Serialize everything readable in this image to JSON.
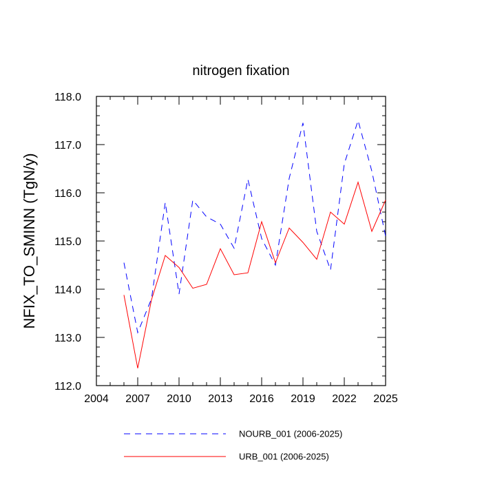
{
  "chart_data": {
    "type": "line",
    "title": "nitrogen fixation",
    "xlabel": "",
    "ylabel": "NFIX_TO_SMINN  (TgN/y)",
    "xlim": [
      2004,
      2025
    ],
    "ylim": [
      112.0,
      118.0
    ],
    "xticks": [
      2004,
      2007,
      2010,
      2013,
      2016,
      2019,
      2022,
      2025
    ],
    "xtick_labels": [
      "2004",
      "2007",
      "2010",
      "2013",
      "2016",
      "2019",
      "2022",
      "2025"
    ],
    "yticks": [
      112.0,
      113.0,
      114.0,
      115.0,
      116.0,
      117.0,
      118.0
    ],
    "ytick_labels": [
      "112.0",
      "113.0",
      "114.0",
      "115.0",
      "116.0",
      "117.0",
      "118.0"
    ],
    "x": [
      2006,
      2007,
      2008,
      2009,
      2010,
      2011,
      2012,
      2013,
      2014,
      2015,
      2016,
      2017,
      2018,
      2019,
      2020,
      2021,
      2022,
      2023,
      2024,
      2025
    ],
    "series": [
      {
        "name": "NOURB_001 (2006-2025)",
        "color": "#0000ff",
        "dash": "dashed",
        "values": [
          114.55,
          113.1,
          113.8,
          115.8,
          113.9,
          115.85,
          115.5,
          115.35,
          114.85,
          116.28,
          115.05,
          114.5,
          116.3,
          117.45,
          115.2,
          114.4,
          116.6,
          117.5,
          116.45,
          115.1
        ]
      },
      {
        "name": "URB_001 (2006-2025)",
        "color": "#ff0000",
        "dash": "solid",
        "values": [
          113.88,
          112.36,
          113.78,
          114.7,
          114.45,
          114.02,
          114.1,
          114.84,
          114.3,
          114.34,
          115.4,
          114.55,
          115.27,
          114.97,
          114.62,
          115.6,
          115.35,
          116.22,
          115.2,
          115.85
        ]
      }
    ],
    "legend_position": "bottom"
  }
}
